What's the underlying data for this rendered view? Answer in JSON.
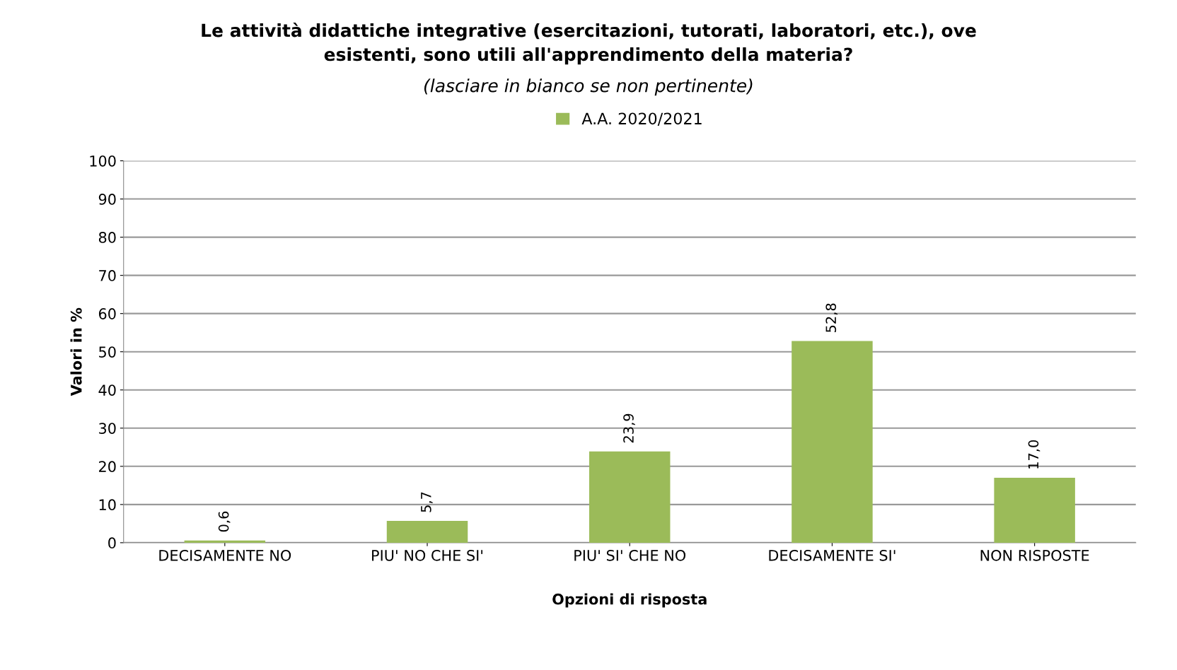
{
  "chart_data": {
    "type": "bar",
    "title": "Le attività didattiche integrative (esercitazioni, tutorati, laboratori, etc.), ove\nesistenti, sono utili all'apprendimento della materia?",
    "subtitle": "(lasciare in bianco se non pertinente)",
    "xlabel": "Opzioni di risposta",
    "ylabel": "Valori in %",
    "categories": [
      "DECISAMENTE NO",
      "PIU' NO CHE SI'",
      "PIU' SI' CHE NO",
      "DECISAMENTE SI'",
      "NON RISPOSTE"
    ],
    "series": [
      {
        "name": "A.A. 2020/2021",
        "color": "#9bbb59",
        "values": [
          0.6,
          5.7,
          23.9,
          52.8,
          17.0
        ],
        "value_labels": [
          "0,6",
          "5,7",
          "23,9",
          "52,8",
          "17,0"
        ]
      }
    ],
    "ylim": [
      0,
      100
    ],
    "yticks": [
      0,
      10,
      20,
      30,
      40,
      50,
      60,
      70,
      80,
      90,
      100
    ],
    "grid": "y",
    "legend": "top"
  }
}
